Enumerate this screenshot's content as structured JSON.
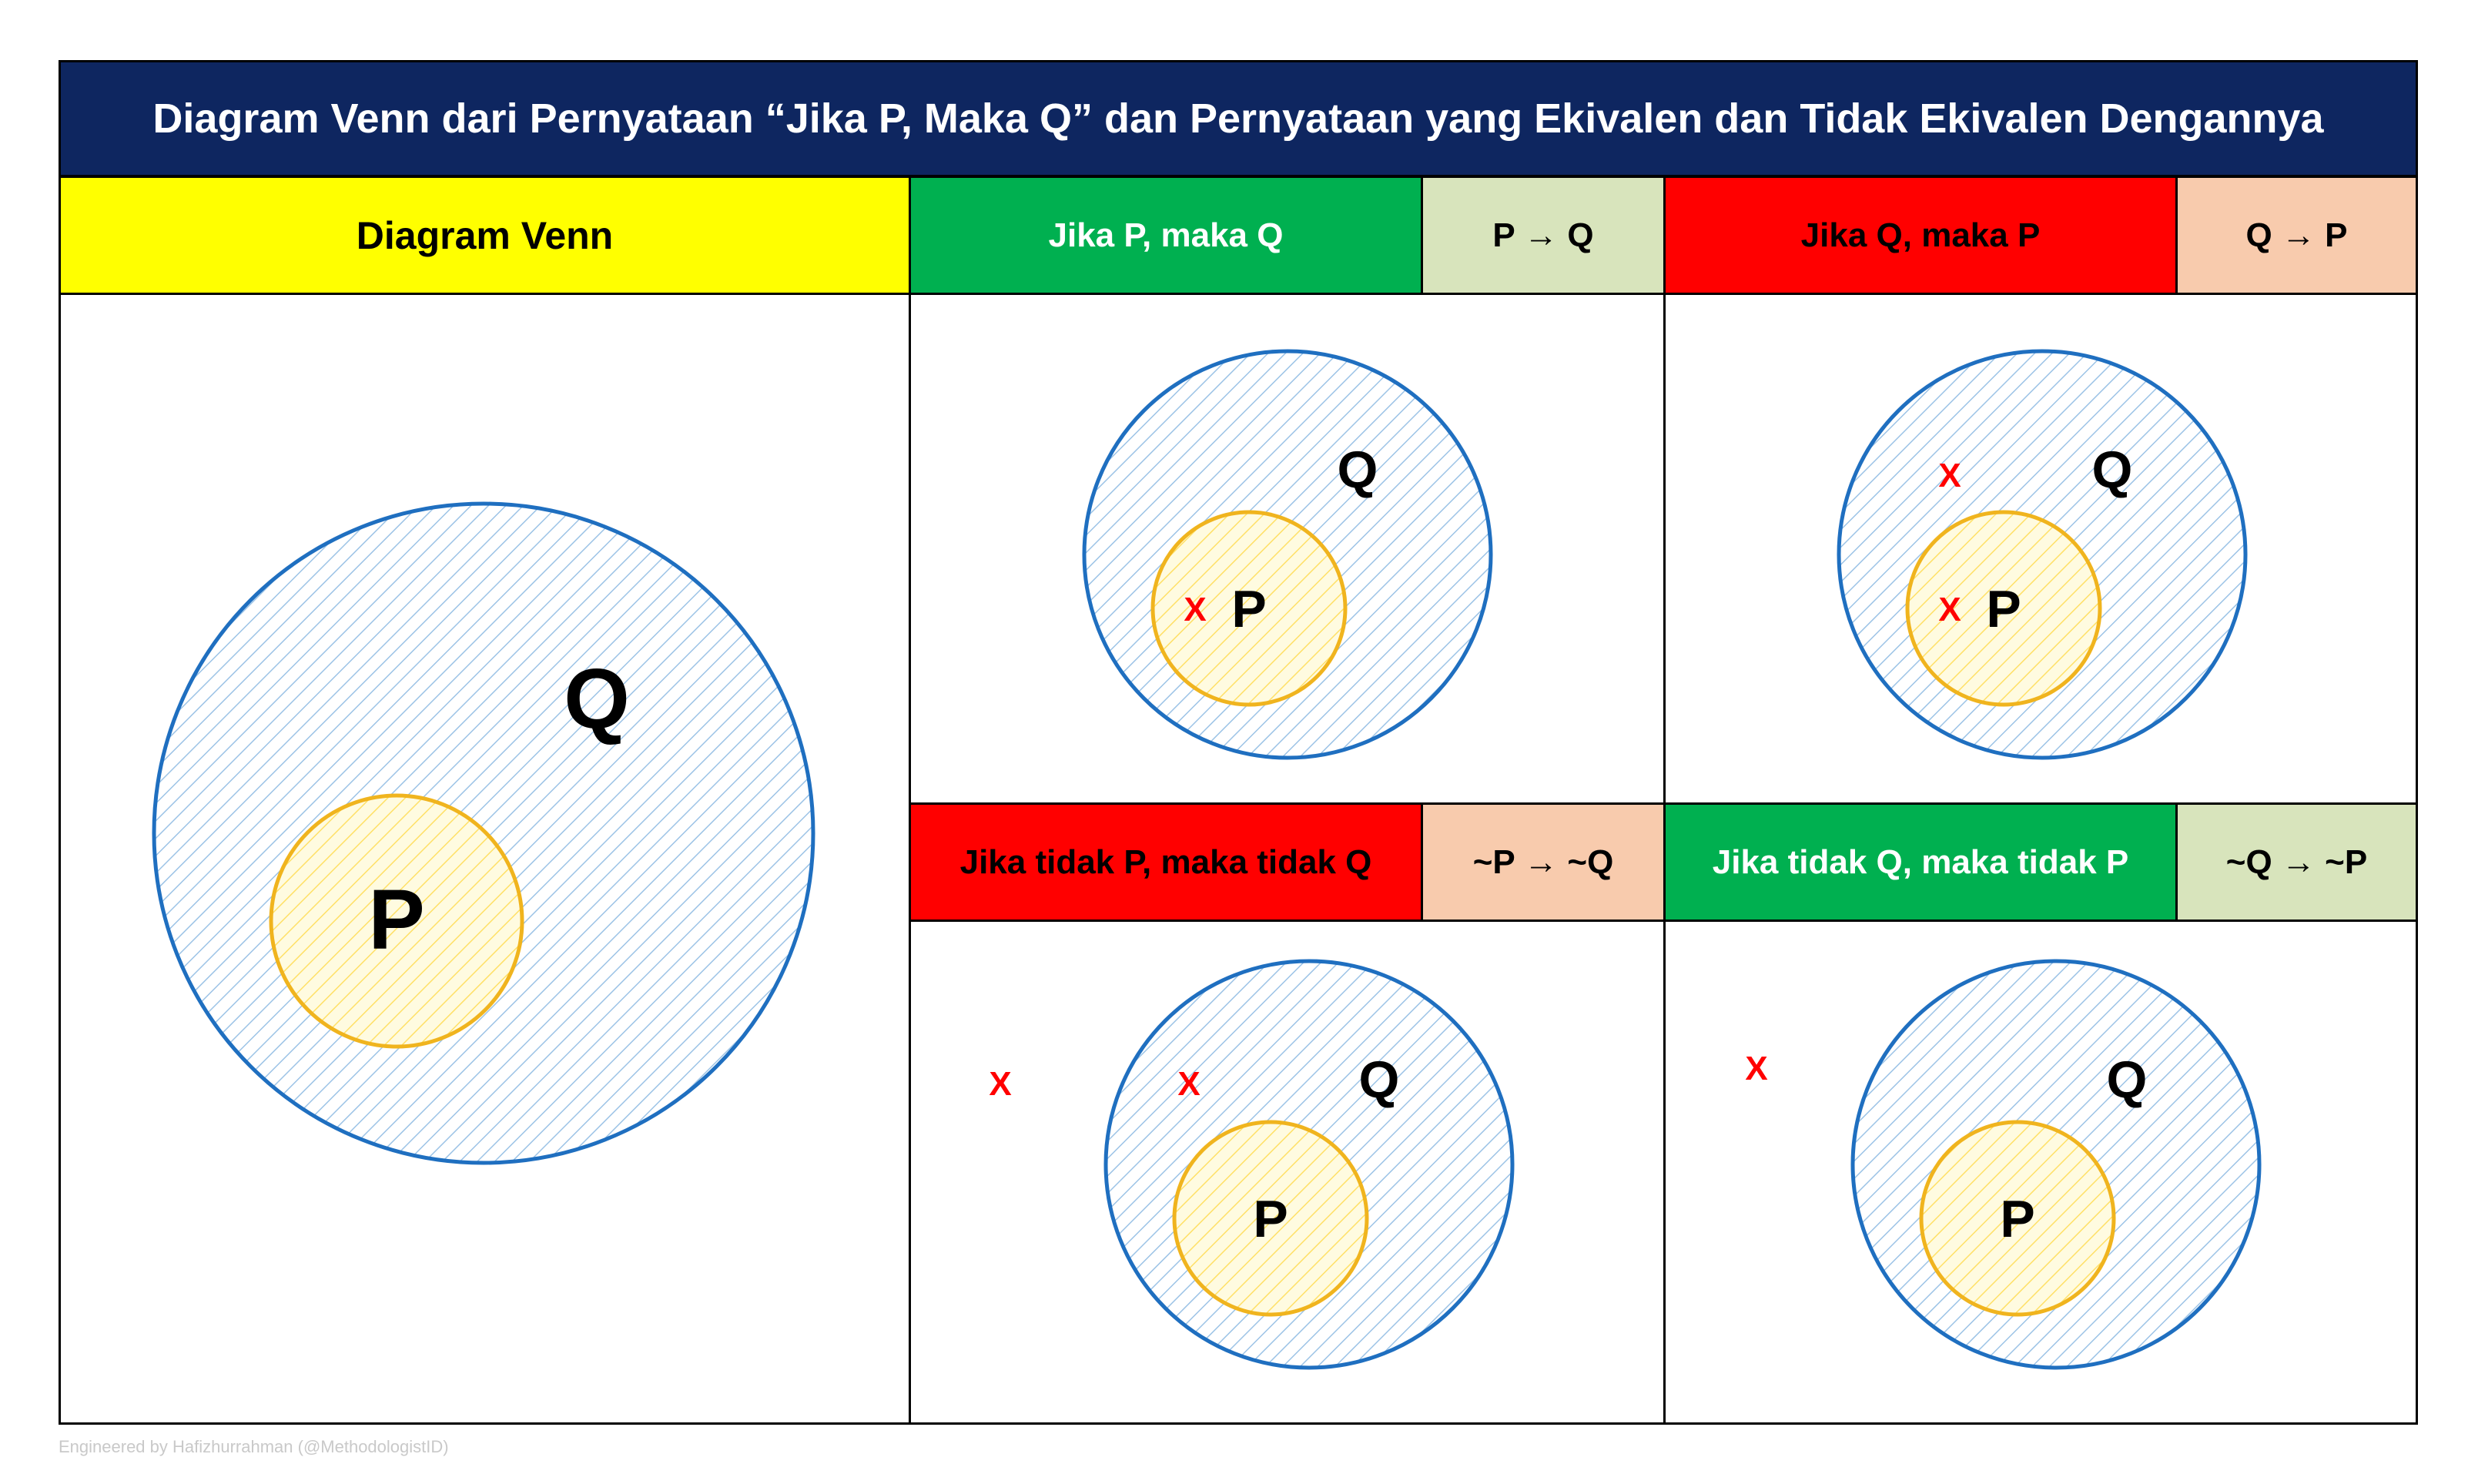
{
  "title": "Diagram Venn dari Pernyataan “Jika P, Maka Q” dan Pernyataan yang Ekivalen dan Tidak Ekivalen Dengannya",
  "main_header": "Diagram Venn",
  "statements": [
    {
      "text": "Jika P, maka Q",
      "symbol": "P → Q",
      "color": "#00b050",
      "symbol_color": "#d8e4bc",
      "text_color": "#ffffff"
    },
    {
      "text": "Jika Q, maka P",
      "symbol": "Q → P",
      "color": "#ff0000",
      "symbol_color": "#f8cbad",
      "text_color": "#000000"
    },
    {
      "text": "Jika tidak P, maka tidak Q",
      "symbol": "~P → ~Q",
      "color": "#ff0000",
      "symbol_color": "#f8cbad",
      "text_color": "#000000"
    },
    {
      "text": "Jika tidak Q, maka tidak P",
      "symbol": "~Q → ~P",
      "color": "#00b050",
      "symbol_color": "#d8e4bc",
      "text_color": "#ffffff"
    }
  ],
  "venn": {
    "outer_label": "Q",
    "inner_label": "P",
    "marker": "X",
    "colors": {
      "outer_stroke": "#1f6fc0",
      "outer_hatch": "#9cc3e6",
      "inner_stroke": "#f0b41e",
      "inner_hatch": "#ffe066",
      "marker": "#ff0000"
    }
  },
  "credit": "Engineered by Hafizhurrahman (@MethodologistID)"
}
